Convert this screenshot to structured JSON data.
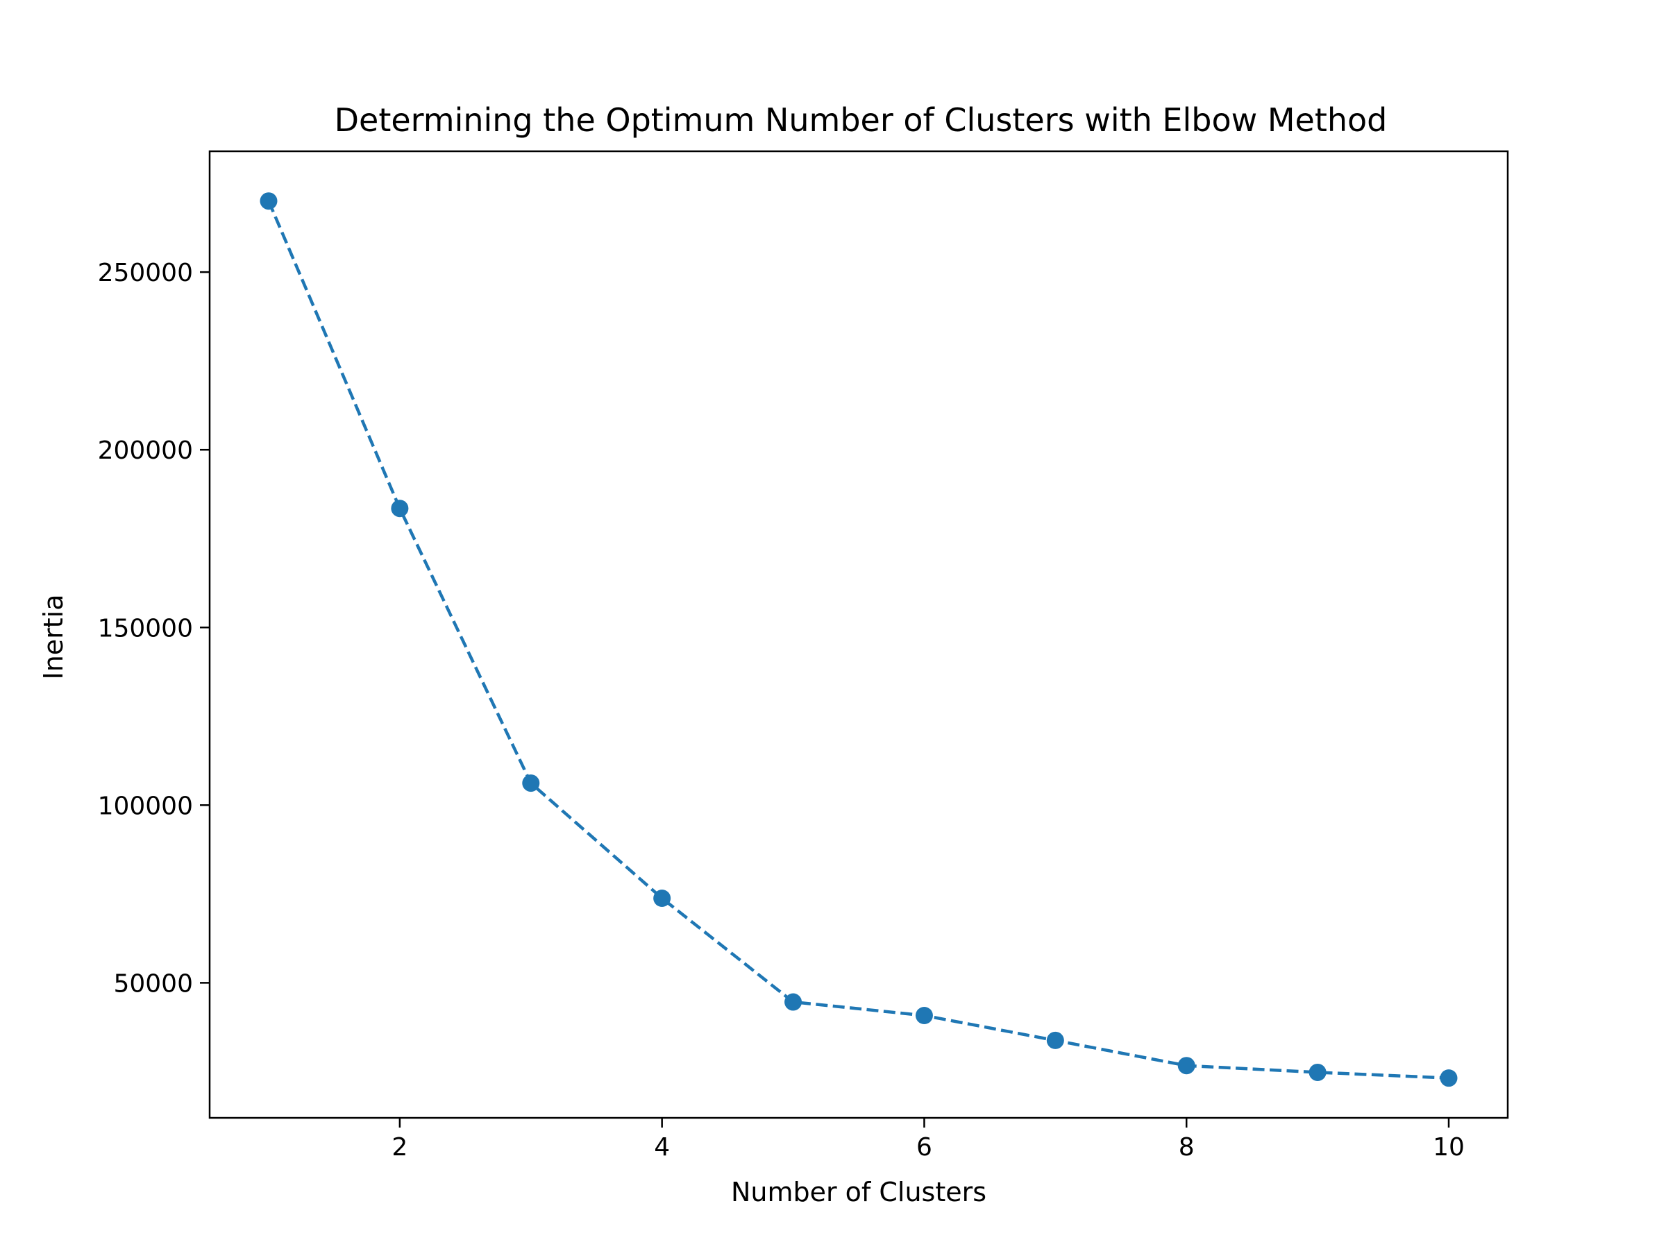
{
  "chart_data": {
    "type": "line",
    "title": "Determining the Optimum Number of Clusters with Elbow Method",
    "xlabel": "Number of Clusters",
    "ylabel": "Inertia",
    "x": [
      1,
      2,
      3,
      4,
      5,
      6,
      7,
      8,
      9,
      10
    ],
    "series": [
      {
        "values": [
          270000,
          183500,
          106200,
          73800,
          44600,
          40800,
          33800,
          26700,
          24800,
          23200
        ],
        "color": "#1f77b4",
        "line_style": "dashed",
        "marker": "circle"
      }
    ],
    "xlim": [
      0.55,
      10.45
    ],
    "ylim": [
      12000,
      284000
    ],
    "xticks": [
      2,
      4,
      6,
      8,
      10
    ],
    "xtick_labels": [
      "2",
      "4",
      "6",
      "8",
      "10"
    ],
    "yticks": [
      50000,
      100000,
      150000,
      200000,
      250000
    ],
    "ytick_labels": [
      "50000",
      "100000",
      "150000",
      "200000",
      "250000"
    ],
    "grid": false
  }
}
